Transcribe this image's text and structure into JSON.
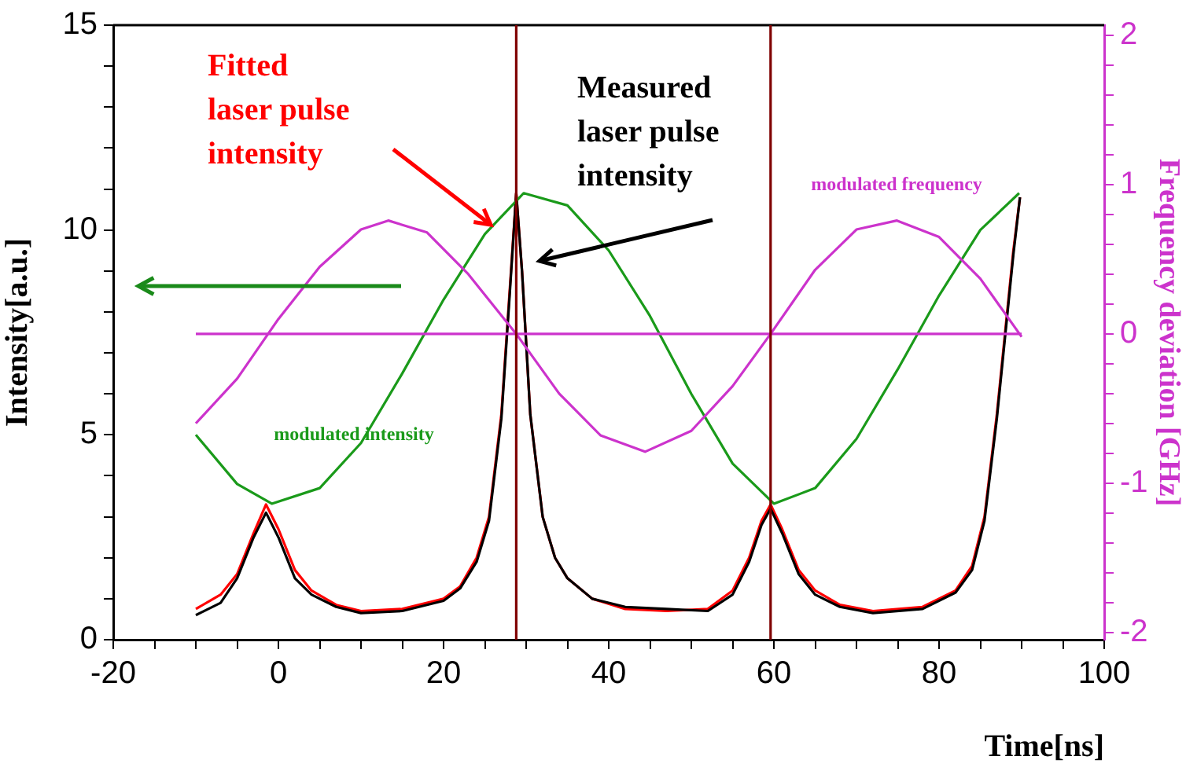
{
  "chart_data": {
    "type": "line",
    "xlabel": "Time[ns]",
    "ylabel": "Intensity[a.u.]",
    "y2label": "Frequency deviation [GHz]",
    "xlim": [
      -20,
      100
    ],
    "ylim": [
      0,
      15
    ],
    "y2lim": [
      -2.05,
      2.07
    ],
    "xticks": [
      -20,
      {
        "value": -15,
        "label": null
      },
      {
        "value": -10,
        "label": null
      },
      {
        "value": -5,
        "label": null
      },
      0,
      {
        "value": 5,
        "label": null
      },
      {
        "value": 10,
        "label": null
      },
      {
        "value": 15,
        "label": null
      },
      20,
      {
        "value": 25,
        "label": null
      },
      {
        "value": 30,
        "label": null
      },
      {
        "value": 35,
        "label": null
      },
      40,
      {
        "value": 45,
        "label": null
      },
      {
        "value": 50,
        "label": null
      },
      {
        "value": 55,
        "label": null
      },
      60,
      {
        "value": 65,
        "label": null
      },
      {
        "value": 70,
        "label": null
      },
      {
        "value": 75,
        "label": null
      },
      80,
      {
        "value": 85,
        "label": null
      },
      {
        "value": 90,
        "label": null
      },
      {
        "value": 95,
        "label": null
      },
      100
    ],
    "yticks": [
      0,
      {
        "value": 1,
        "label": null
      },
      {
        "value": 2,
        "label": null
      },
      {
        "value": 3,
        "label": null
      },
      {
        "value": 4,
        "label": null
      },
      5,
      {
        "value": 6,
        "label": null
      },
      {
        "value": 7,
        "label": null
      },
      {
        "value": 8,
        "label": null
      },
      {
        "value": 9,
        "label": null
      },
      10,
      {
        "value": 11,
        "label": null
      },
      {
        "value": 12,
        "label": null
      },
      {
        "value": 13,
        "label": null
      },
      {
        "value": 14,
        "label": null
      },
      15
    ],
    "y2ticks": [
      -2,
      {
        "value": -1.8,
        "label": null
      },
      {
        "value": -1.6,
        "label": null
      },
      {
        "value": -1.4,
        "label": null
      },
      {
        "value": -1.2,
        "label": null
      },
      -1,
      {
        "value": -0.8,
        "label": null
      },
      {
        "value": -0.6,
        "label": null
      },
      {
        "value": -0.4,
        "label": null
      },
      {
        "value": -0.2,
        "label": null
      },
      0,
      {
        "value": 0.2,
        "label": null
      },
      {
        "value": 0.4,
        "label": null
      },
      {
        "value": 0.6,
        "label": null
      },
      {
        "value": 0.8,
        "label": null
      },
      1,
      {
        "value": 1.2,
        "label": null
      },
      {
        "value": 1.4,
        "label": null
      },
      {
        "value": 1.6,
        "label": null
      },
      {
        "value": 1.8,
        "label": null
      },
      2
    ],
    "legend": false,
    "marker": "none",
    "line_style": "solid",
    "series": [
      {
        "name": "modulated frequency",
        "color": "#cc33cc",
        "axis": "y2",
        "x": [
          -10,
          -5,
          0,
          5,
          10,
          13.3,
          18,
          23,
          28.8,
          34,
          39,
          44.4,
          50,
          55,
          59.6,
          65,
          70,
          74.9,
          80,
          85,
          90
        ],
        "values": [
          -0.6,
          -0.3,
          0.1,
          0.45,
          0.7,
          0.76,
          0.68,
          0.4,
          0,
          -0.4,
          -0.68,
          -0.79,
          -0.65,
          -0.35,
          0,
          0.43,
          0.7,
          0.76,
          0.65,
          0.37,
          -0.02
        ]
      },
      {
        "color": "#cc33cc",
        "axis": "y2",
        "x": [
          -10,
          90
        ],
        "values": [
          0,
          0
        ]
      },
      {
        "name": "modulated intensity",
        "color": "#1a9a1a",
        "x": [
          -10,
          -5,
          -0.8,
          5,
          10,
          15,
          20,
          25,
          29.7,
          35,
          40,
          45,
          50,
          55,
          60,
          65,
          70,
          75,
          80,
          85,
          89.7
        ],
        "values": [
          5.0,
          3.8,
          3.32,
          3.7,
          4.8,
          6.5,
          8.3,
          9.9,
          10.9,
          10.6,
          9.5,
          7.9,
          6.0,
          4.3,
          3.32,
          3.7,
          4.9,
          6.6,
          8.4,
          10.0,
          10.9
        ]
      },
      {
        "color": "#000000",
        "x": [
          -10,
          -7,
          -5,
          -3,
          -1.5,
          0,
          2,
          4,
          7,
          10,
          15,
          20,
          22,
          24,
          25.5,
          27,
          28,
          28.8,
          29.5,
          30.5,
          32,
          33.5,
          35,
          38,
          42,
          47,
          52,
          55,
          57,
          58.5,
          59.6,
          61,
          63,
          65,
          68,
          72,
          78,
          82,
          84,
          85.5,
          87,
          88,
          89,
          89.8
        ],
        "values": [
          0.6,
          0.9,
          1.5,
          2.5,
          3.1,
          2.5,
          1.5,
          1.1,
          0.8,
          0.65,
          0.7,
          0.95,
          1.25,
          1.9,
          2.9,
          5.4,
          8.4,
          10.9,
          9.0,
          5.5,
          3.0,
          2.0,
          1.5,
          1.0,
          0.8,
          0.75,
          0.7,
          1.1,
          1.9,
          2.8,
          3.2,
          2.6,
          1.6,
          1.1,
          0.8,
          0.65,
          0.75,
          1.15,
          1.7,
          2.9,
          5.4,
          7.4,
          9.4,
          10.8
        ]
      },
      {
        "color": "#ff0000",
        "x": [
          -10,
          -7,
          -5,
          -3,
          -1.5,
          0,
          2,
          4,
          7,
          10,
          15,
          20,
          22,
          24,
          25.5,
          27,
          28,
          28.8,
          29.5,
          30.5,
          32,
          33.5,
          35,
          38,
          42,
          47,
          52,
          55,
          57,
          58.5,
          59.6,
          61,
          63,
          65,
          68,
          72,
          78,
          82,
          84,
          85.5,
          87,
          88,
          89,
          89.8
        ],
        "values": [
          0.75,
          1.1,
          1.6,
          2.6,
          3.3,
          2.7,
          1.7,
          1.2,
          0.85,
          0.7,
          0.75,
          1.0,
          1.3,
          2.0,
          3.0,
          5.5,
          8.5,
          10.9,
          9.0,
          5.5,
          3.0,
          2.0,
          1.5,
          1.0,
          0.75,
          0.7,
          0.75,
          1.2,
          2.0,
          2.9,
          3.3,
          2.7,
          1.7,
          1.2,
          0.85,
          0.7,
          0.8,
          1.2,
          1.8,
          3.0,
          5.5,
          7.5,
          9.5,
          10.8
        ]
      }
    ],
    "ref_lines": [
      {
        "axis": "x",
        "value": 28.8,
        "color": "#800000"
      },
      {
        "axis": "x",
        "value": 59.6,
        "color": "#800000"
      }
    ],
    "annotations": [
      "Fitted\nlaser pulse\nintensity",
      "Measured\nlaser pulse\nintensity"
    ]
  }
}
